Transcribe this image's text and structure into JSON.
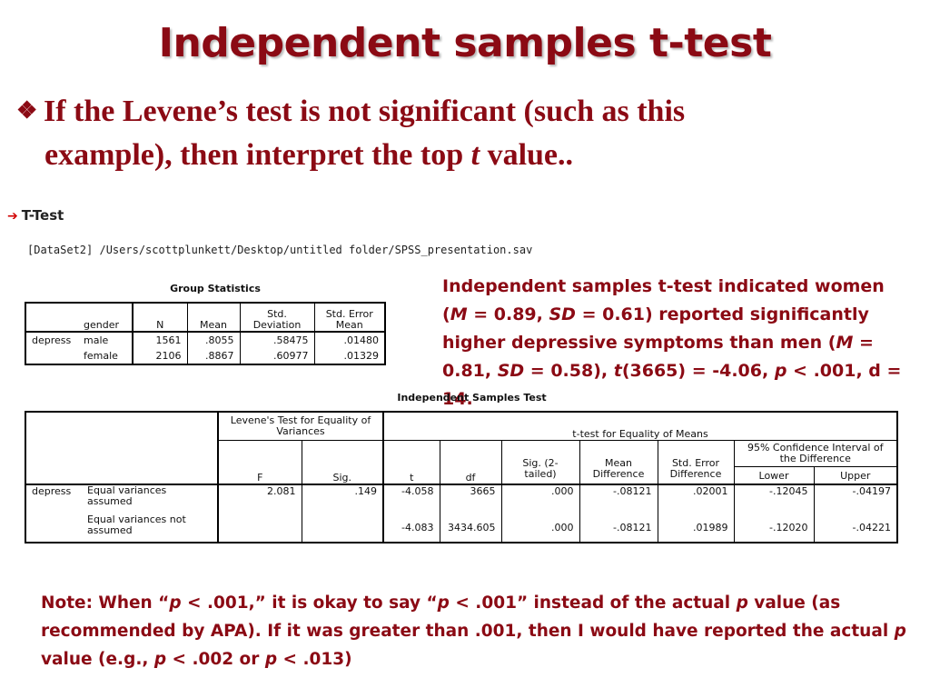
{
  "slide": {
    "title": "Independent samples t-test",
    "bullet_symbol": "❖",
    "bullet_line1": "If the Levene’s test is not significant (such as this",
    "bullet_line2_prefix": "example), then interpret the top ",
    "bullet_line2_t": "t",
    "bullet_line2_suffix": " value.."
  },
  "output": {
    "arrow": "➔",
    "heading": "T-Test",
    "dataset": "[DataSet2] /Users/scottplunkett/Desktop/untitled folder/SPSS_presentation.sav"
  },
  "group_stats": {
    "caption": "Group Statistics",
    "col_gender": "gender",
    "col_n": "N",
    "col_mean": "Mean",
    "col_sd": "Std. Deviation",
    "col_se": "Std. Error Mean",
    "var": "depress",
    "rows": [
      {
        "gender": "male",
        "n": "1561",
        "mean": ".8055",
        "sd": ".58475",
        "se": ".01480"
      },
      {
        "gender": "female",
        "n": "2106",
        "mean": ".8867",
        "sd": ".60977",
        "se": ".01329"
      }
    ]
  },
  "ind_test": {
    "caption": "Independent Samples Test",
    "levene_header": "Levene's Test for Equality of Variances",
    "ttest_header": "t-test for Equality of Means",
    "ci_header": "95% Confidence Interval of the Difference",
    "col_f": "F",
    "col_sig": "Sig.",
    "col_t": "t",
    "col_df": "df",
    "col_sig2": "Sig. (2-tailed)",
    "col_md": "Mean Difference",
    "col_sed": "Std. Error Difference",
    "col_lower": "Lower",
    "col_upper": "Upper",
    "var": "depress",
    "rows": [
      {
        "label": "Equal variances assumed",
        "f": "2.081",
        "sig": ".149",
        "t": "-4.058",
        "df": "3665",
        "sig2": ".000",
        "md": "-.08121",
        "sed": ".02001",
        "lower": "-.12045",
        "upper": "-.04197"
      },
      {
        "label": "Equal variances not assumed",
        "f": "",
        "sig": "",
        "t": "-4.083",
        "df": "3434.605",
        "sig2": ".000",
        "md": "-.08121",
        "sed": ".01989",
        "lower": "-.12020",
        "upper": "-.04221"
      }
    ]
  },
  "result_text": {
    "p1": "Independent samples t-test indicated women (",
    "M1": "M",
    "p2": " = 0.89, ",
    "SD1": "SD",
    "p3": " = 0.61) reported significantly higher depressive symptoms than men (",
    "M2": "M",
    "p4": " = 0.81, ",
    "SD2": "SD",
    "p5": " = 0.58), ",
    "t": "t",
    "p6": "(3665) = -4.06, ",
    "p": "p",
    "p7": " < .001, d = 14."
  },
  "note": {
    "n1": "Note: When “",
    "p1": "p",
    "n2": " < .001,” it is okay to say “",
    "p2": "p",
    "n3": " < .001” instead of the actual ",
    "p3": "p",
    "n4": " value (as recommended by APA). If it was greater than .001, then I would have reported the actual ",
    "p4": "p",
    "n5": " value (e.g., ",
    "p5": "p",
    "n6": " < .002 or ",
    "p6": "p",
    "n7": " < .013)"
  },
  "colors": {
    "accent": "#8b0a14",
    "arrow": "#d10000"
  }
}
